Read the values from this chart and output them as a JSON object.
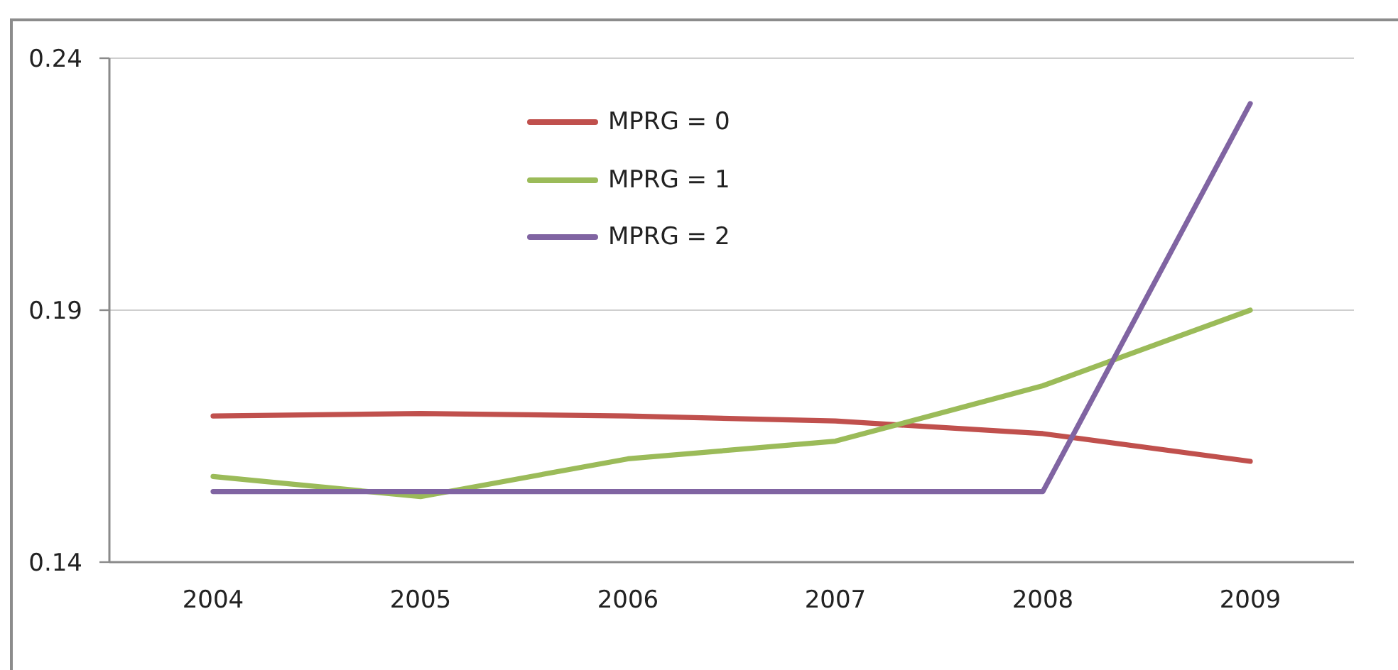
{
  "chart_data": {
    "type": "line",
    "categories": [
      "2004",
      "2005",
      "2006",
      "2007",
      "2008",
      "2009"
    ],
    "series": [
      {
        "name": "MPRG = 0",
        "color": "#c0504d",
        "values": [
          0.169,
          0.1695,
          0.169,
          0.168,
          0.1655,
          0.16
        ]
      },
      {
        "name": "MPRG = 1",
        "color": "#9bbb59",
        "values": [
          0.157,
          0.153,
          0.1605,
          0.164,
          0.175,
          0.19
        ]
      },
      {
        "name": "MPRG = 2",
        "color": "#8064a2",
        "values": [
          0.154,
          0.154,
          0.154,
          0.154,
          0.154,
          0.231
        ]
      }
    ],
    "ylim": [
      0.14,
      0.24
    ],
    "yticks": [
      0.14,
      0.19,
      0.24
    ],
    "grid": "y",
    "legend": "top"
  }
}
